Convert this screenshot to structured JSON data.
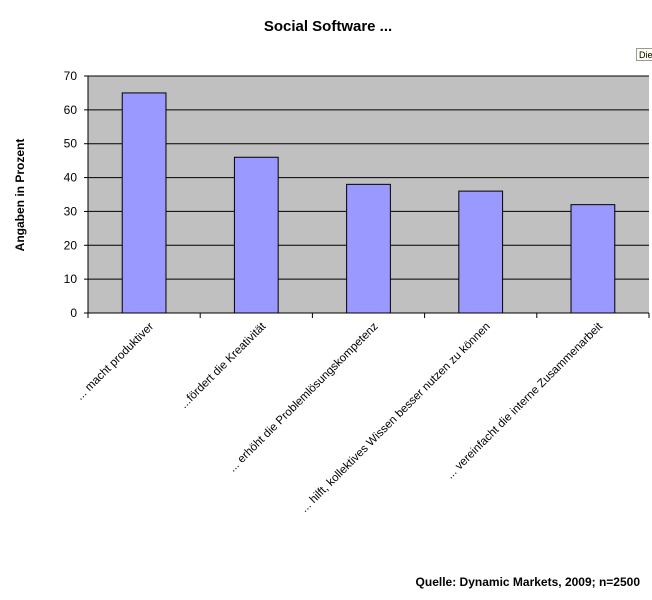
{
  "corner_tag": "Die",
  "source": "Quelle: Dynamic Markets, 2009; n=2500",
  "colors": {
    "plot_background": "#c0c0c0",
    "bar_fill": "#9999ff",
    "bar_stroke": "#000000",
    "gridline": "#000000"
  },
  "chart_data": {
    "type": "bar",
    "title": "Social Software ...",
    "xlabel": "",
    "ylabel": "Angaben in Prozent",
    "ylim": [
      0,
      70
    ],
    "yticks": [
      0,
      10,
      20,
      30,
      40,
      50,
      60,
      70
    ],
    "grid": true,
    "legend": "none",
    "categories": [
      "... macht produktiver",
      "...fördert die Kreativität",
      "... erhöht die Problemlösungskompetenz",
      "... hilft, kollektives Wissen besser nutzen zu können",
      "... vereinfacht die interne Zusammenarbeit"
    ],
    "values": [
      65,
      46,
      38,
      36,
      32
    ]
  }
}
